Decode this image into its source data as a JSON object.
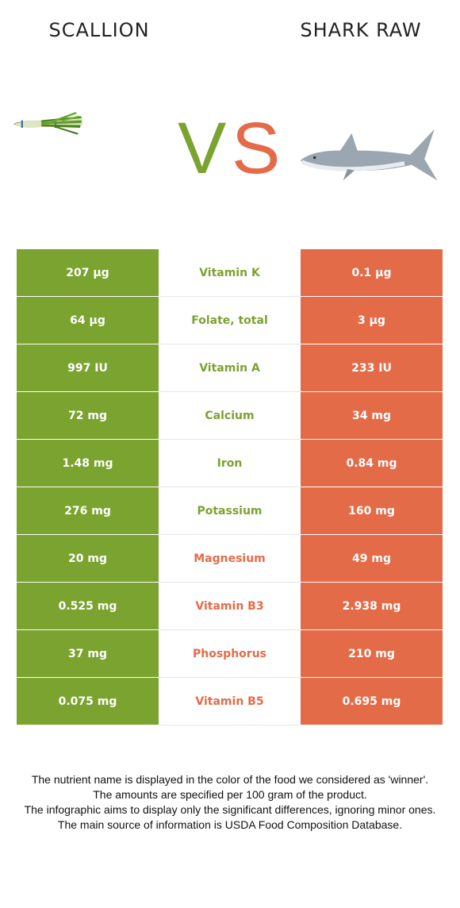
{
  "header": {
    "left_title": "SCALLION",
    "right_title": "SHARK RAW",
    "vs_text": "VS"
  },
  "colors": {
    "left_food": "#7aa32f",
    "right_food": "#e46b48"
  },
  "icons": {
    "left_image": "scallion-icon",
    "right_image": "shark-icon"
  },
  "rows": [
    {
      "left": "207 µg",
      "nutrient": "Vitamin K",
      "right": "0.1 µg",
      "winner": "left"
    },
    {
      "left": "64 µg",
      "nutrient": "Folate, total",
      "right": "3 µg",
      "winner": "left"
    },
    {
      "left": "997 IU",
      "nutrient": "Vitamin A",
      "right": "233 IU",
      "winner": "left"
    },
    {
      "left": "72 mg",
      "nutrient": "Calcium",
      "right": "34 mg",
      "winner": "left"
    },
    {
      "left": "1.48 mg",
      "nutrient": "Iron",
      "right": "0.84 mg",
      "winner": "left"
    },
    {
      "left": "276 mg",
      "nutrient": "Potassium",
      "right": "160 mg",
      "winner": "left"
    },
    {
      "left": "20 mg",
      "nutrient": "Magnesium",
      "right": "49 mg",
      "winner": "right"
    },
    {
      "left": "0.525 mg",
      "nutrient": "Vitamin B3",
      "right": "2.938 mg",
      "winner": "right"
    },
    {
      "left": "37 mg",
      "nutrient": "Phosphorus",
      "right": "210 mg",
      "winner": "right"
    },
    {
      "left": "0.075 mg",
      "nutrient": "Vitamin B5",
      "right": "0.695 mg",
      "winner": "right"
    }
  ],
  "footer": {
    "line1": "The nutrient name is displayed in the color of the food we considered as 'winner'.",
    "line2": "The amounts are specified per 100 gram of the product.",
    "line3": "The infographic aims to display only the significant differences, ignoring minor ones.",
    "line4": "The main source of information is USDA Food Composition Database."
  }
}
